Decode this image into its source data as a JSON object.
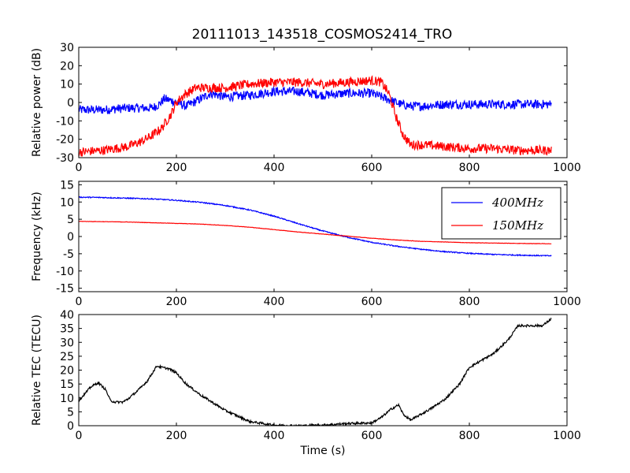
{
  "title": "20111013_143518_COSMOS2414_TRO",
  "chart_data": [
    {
      "type": "line",
      "ylabel": "Relative power (dB)",
      "xlim": [
        0,
        1000
      ],
      "ylim": [
        -30,
        30
      ],
      "xticks": [
        0,
        200,
        400,
        600,
        800,
        1000
      ],
      "yticks": [
        -30,
        -20,
        -10,
        0,
        10,
        20,
        30
      ],
      "series": [
        {
          "color": "#0000ff",
          "noise": 2.5,
          "x": [
            0,
            50,
            100,
            150,
            165,
            175,
            190,
            200,
            220,
            250,
            270,
            300,
            350,
            400,
            450,
            500,
            550,
            600,
            620,
            640,
            660,
            680,
            700,
            750,
            800,
            850,
            900,
            950,
            968
          ],
          "values": [
            -4,
            -4,
            -3,
            -3,
            -1,
            2,
            1,
            0,
            -2,
            2,
            5,
            3,
            4,
            6,
            6,
            4,
            5,
            5,
            3,
            1,
            -1,
            -2,
            -2,
            -1,
            -1,
            -1,
            -1,
            -1,
            -1
          ]
        },
        {
          "color": "#ff0000",
          "noise": 2.5,
          "x": [
            0,
            50,
            100,
            130,
            150,
            170,
            190,
            200,
            215,
            240,
            300,
            350,
            400,
            450,
            500,
            550,
            600,
            620,
            635,
            650,
            665,
            680,
            700,
            750,
            800,
            850,
            900,
            950,
            968
          ],
          "values": [
            -27,
            -26,
            -24,
            -21,
            -18,
            -14,
            -6,
            0,
            4,
            8,
            8,
            10,
            11,
            11,
            10,
            11,
            12,
            11,
            5,
            -8,
            -18,
            -23,
            -23,
            -24,
            -25,
            -25,
            -26,
            -26,
            -26
          ]
        }
      ]
    },
    {
      "type": "line",
      "ylabel": "Frequency (kHz)",
      "xlim": [
        0,
        1000
      ],
      "ylim": [
        -16,
        16
      ],
      "xticks": [
        0,
        200,
        400,
        600,
        800,
        1000
      ],
      "yticks": [
        -15,
        -10,
        -5,
        0,
        5,
        10,
        15
      ],
      "legend_position": "top-right",
      "series": [
        {
          "name": "400MHz",
          "color": "#0000ff",
          "noise": 0.15,
          "x": [
            0,
            50,
            100,
            150,
            200,
            250,
            300,
            350,
            400,
            450,
            500,
            550,
            600,
            650,
            700,
            750,
            800,
            850,
            900,
            968
          ],
          "values": [
            11.4,
            11.3,
            11.1,
            10.9,
            10.5,
            9.9,
            9.0,
            7.7,
            5.9,
            3.7,
            1.6,
            -0.2,
            -1.7,
            -2.8,
            -3.7,
            -4.4,
            -4.9,
            -5.2,
            -5.4,
            -5.6
          ]
        },
        {
          "name": "150MHz",
          "color": "#ff0000",
          "noise": 0.05,
          "x": [
            0,
            50,
            100,
            150,
            200,
            250,
            300,
            350,
            400,
            450,
            500,
            550,
            600,
            650,
            700,
            750,
            800,
            850,
            900,
            968
          ],
          "values": [
            4.4,
            4.3,
            4.2,
            4.0,
            3.8,
            3.6,
            3.2,
            2.7,
            2.0,
            1.3,
            0.7,
            0.1,
            -0.5,
            -1.0,
            -1.4,
            -1.6,
            -1.8,
            -1.9,
            -2.0,
            -2.1
          ]
        }
      ]
    },
    {
      "type": "line",
      "xlabel": "Time (s)",
      "ylabel": "Relative TEC (TECU)",
      "xlim": [
        0,
        1000
      ],
      "ylim": [
        0,
        40
      ],
      "xticks": [
        0,
        200,
        400,
        600,
        800,
        1000
      ],
      "yticks": [
        0,
        5,
        10,
        15,
        20,
        25,
        30,
        35,
        40
      ],
      "series": [
        {
          "color": "#000000",
          "noise": 0.4,
          "x": [
            0,
            15,
            25,
            40,
            55,
            65,
            75,
            90,
            100,
            110,
            120,
            140,
            160,
            170,
            185,
            200,
            220,
            250,
            300,
            350,
            400,
            450,
            500,
            550,
            600,
            620,
            640,
            655,
            665,
            680,
            700,
            720,
            750,
            780,
            800,
            850,
            880,
            900,
            950,
            968
          ],
          "values": [
            9,
            12,
            14,
            15.5,
            13,
            9,
            8.5,
            8.5,
            9.5,
            11,
            12.5,
            16,
            21.5,
            21,
            20.5,
            19,
            15,
            11,
            5.5,
            1.5,
            0.2,
            0,
            0.2,
            0.8,
            1,
            3,
            6,
            7.5,
            4,
            2,
            4,
            6,
            9.5,
            15,
            21,
            26,
            31,
            36,
            36,
            38.5
          ]
        }
      ]
    }
  ]
}
